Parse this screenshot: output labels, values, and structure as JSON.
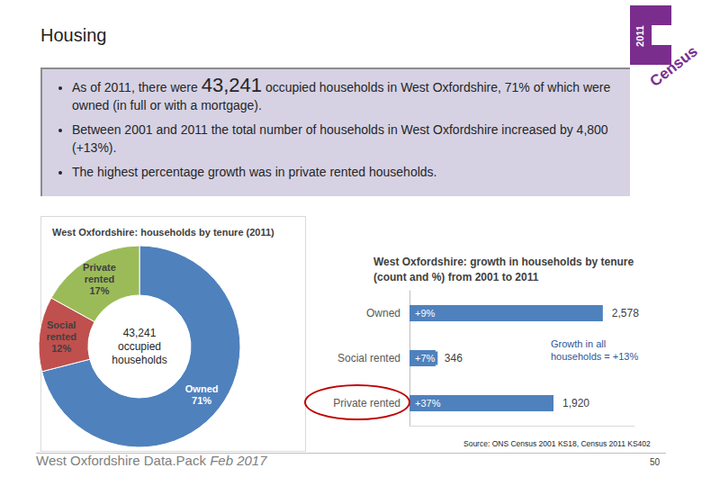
{
  "slide": {
    "title": "Housing",
    "bullets": [
      "As of 2011, there were 43,241 occupied households in West Oxfordshire, 71% of which were owned (in full or with a mortgage).",
      "Between 2001 and 2011 the total number of households in West Oxfordshire increased by 4,800 (+13%).",
      "The highest percentage growth was in private rented households."
    ],
    "emphasis": "43,241",
    "logo": {
      "year": "2011",
      "text": "Census"
    },
    "source": "Source: ONS Census 2001 KS18, Census 2011 KS402",
    "footer": "West Oxfordshire Data.Pack",
    "footer_date": "Feb 2017",
    "page": 50
  },
  "chart_data": [
    {
      "type": "pie",
      "title": "West Oxfordshire: households by tenure (2011)",
      "categories": [
        "Owned",
        "Social rented",
        "Private rented"
      ],
      "values": [
        71,
        12,
        17
      ],
      "value_labels": [
        "71%",
        "12%",
        "17%"
      ],
      "colors": [
        "#4f81bd",
        "#c0504d",
        "#9bbb59"
      ],
      "data_labels": true,
      "annotation": "43,241 occupied households"
    },
    {
      "type": "bar",
      "orientation": "horizontal",
      "title": "West Oxfordshire: growth in households by tenure (count and %) from 2001 to 2011",
      "categories": [
        "Owned",
        "Social rented",
        "Private rented"
      ],
      "values": [
        2578,
        346,
        1920
      ],
      "value_labels": [
        "2,578",
        "346",
        "1,920"
      ],
      "growth_percent": [
        9,
        7,
        37
      ],
      "growth_percent_labels": [
        "+9%",
        "+7%",
        "+37%"
      ],
      "color": "#4f81bd",
      "xlim": [
        0,
        3000
      ],
      "grid": false,
      "tick_labels": "y",
      "data_labels": true,
      "annotation": "Growth in all households = +13%"
    }
  ]
}
